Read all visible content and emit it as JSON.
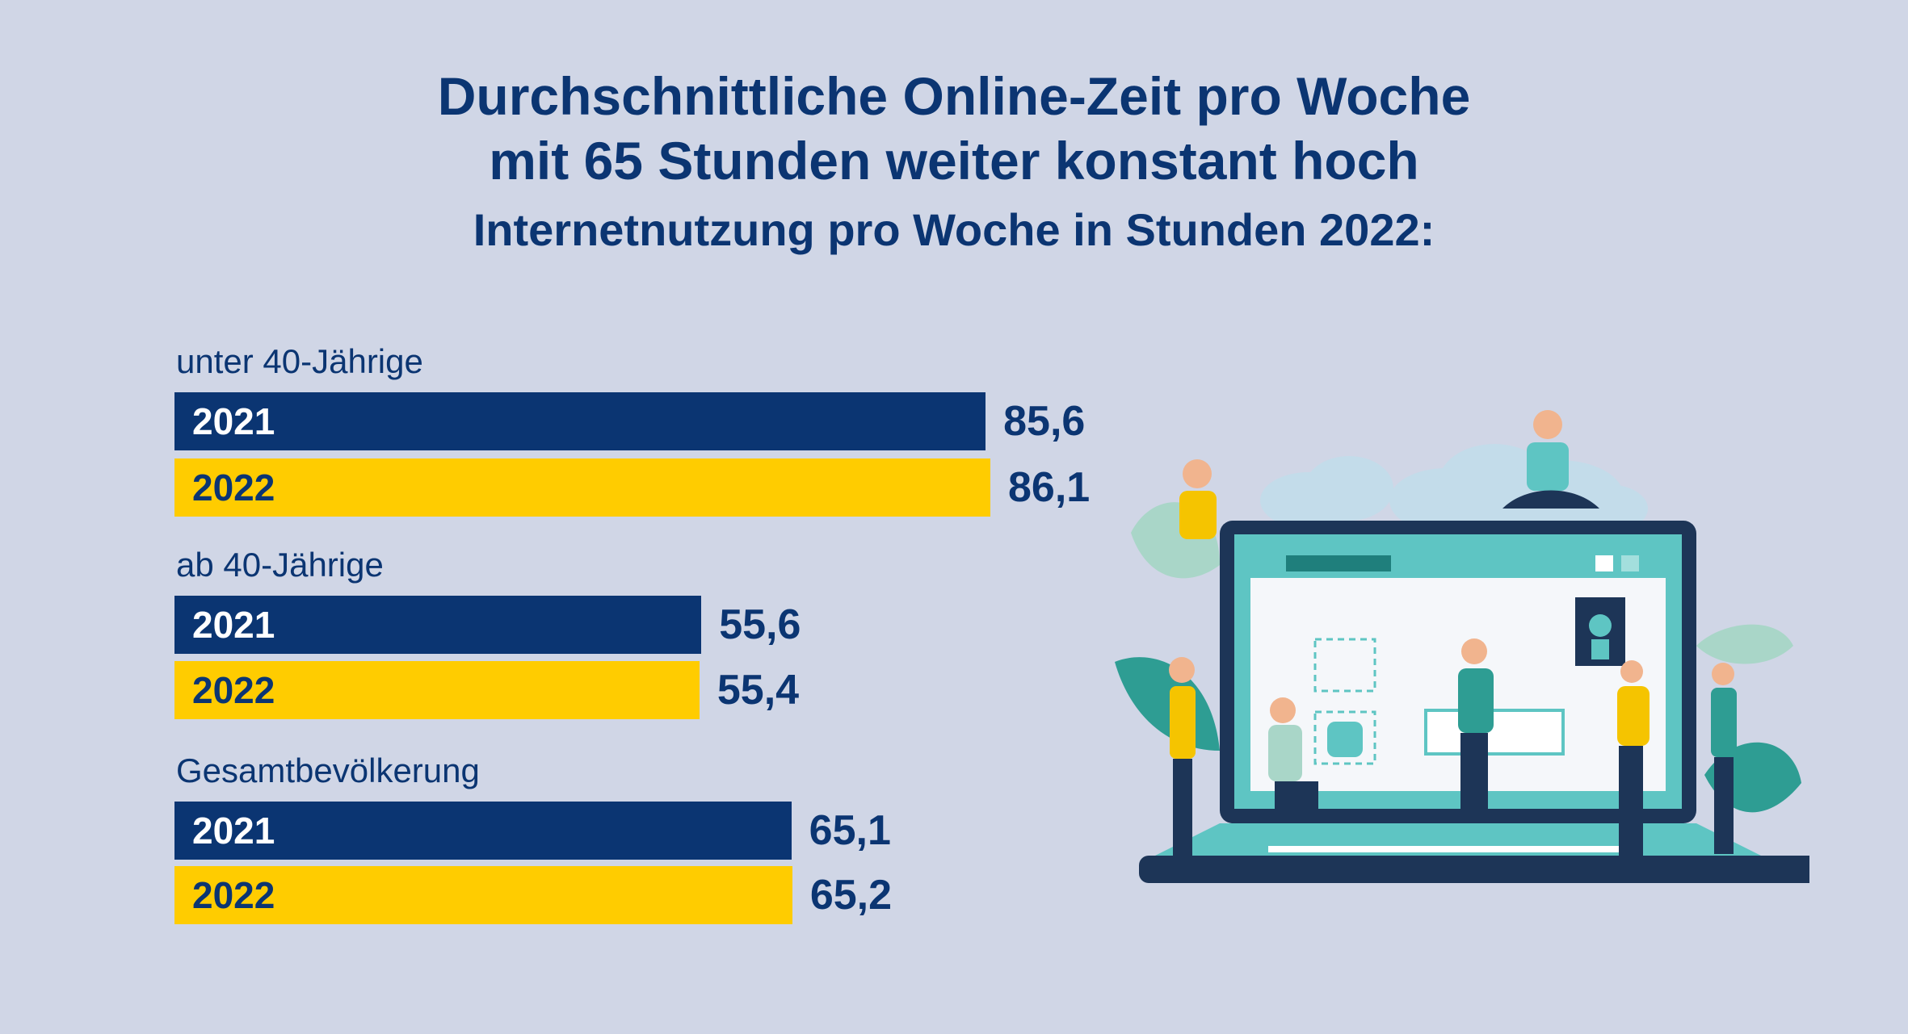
{
  "chart_data": {
    "type": "bar",
    "orientation": "horizontal",
    "title_lines": [
      "Durchschnittliche Online-Zeit pro Woche",
      "mit 65 Stunden weiter konstant hoch"
    ],
    "subtitle": "Internetnutzung pro Woche in Stunden 2022:",
    "xlim": [
      0,
      90
    ],
    "groups": [
      {
        "label": "unter 40-Jährige",
        "bars": [
          {
            "year": "2021",
            "value": 85.6,
            "label": "85,6"
          },
          {
            "year": "2022",
            "value": 86.1,
            "label": "86,1"
          }
        ]
      },
      {
        "label": "ab 40-Jährige",
        "bars": [
          {
            "year": "2021",
            "value": 55.6,
            "label": "55,6"
          },
          {
            "year": "2022",
            "value": 55.4,
            "label": "55,4"
          }
        ]
      },
      {
        "label": "Gesamtbevölkerung",
        "bars": [
          {
            "year": "2021",
            "value": 65.1,
            "label": "65,1"
          },
          {
            "year": "2022",
            "value": 65.2,
            "label": "65,2"
          }
        ]
      }
    ],
    "colors": {
      "2021": "#0b3572",
      "2022": "#ffcc00",
      "text": "#0b3572",
      "background": "#d0d6e6"
    }
  },
  "illustration": {
    "description_icon": "people-around-laptop-illustration"
  }
}
